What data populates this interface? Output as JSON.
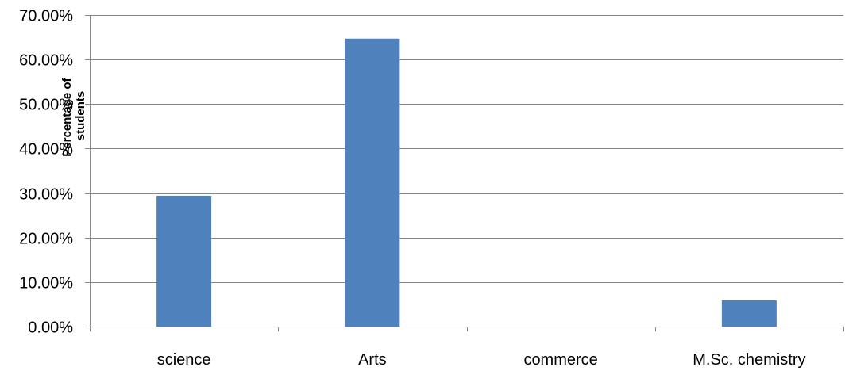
{
  "chart_data": {
    "type": "bar",
    "categories": [
      "science",
      "Arts",
      "commerce",
      "M.Sc. chemistry"
    ],
    "series": [
      {
        "values": [
          29.4,
          64.7,
          0,
          5.9
        ]
      }
    ],
    "ylabel": "Percentage of students",
    "ylabel_lines": [
      "Percentage of",
      "students"
    ],
    "ylim": [
      0,
      70
    ],
    "yticks": [
      0,
      10,
      20,
      30,
      40,
      50,
      60,
      70
    ],
    "ytick_labels": [
      "0.00%",
      "10.00%",
      "20.00%",
      "30.00%",
      "40.00%",
      "50.00%",
      "60.00%",
      "70.00%"
    ],
    "grid": true,
    "legend": "none",
    "bar_color": "#4f81bd"
  }
}
